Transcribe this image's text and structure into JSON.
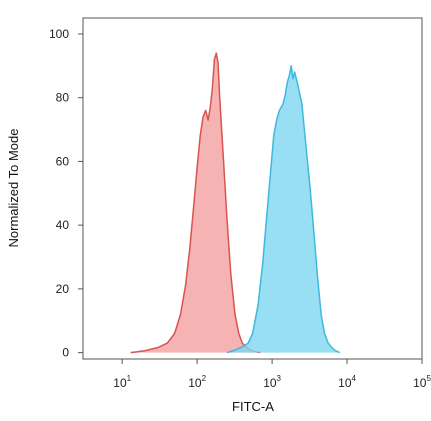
{
  "chart_data": {
    "type": "area",
    "xlabel": "FITC-A",
    "ylabel": "Normalized To Mode",
    "x_scale": "log",
    "xlim": [
      3,
      100000
    ],
    "ylim": [
      -2,
      105
    ],
    "x_ticks": [
      {
        "value": 10,
        "base": "10",
        "exp": "1"
      },
      {
        "value": 100,
        "base": "10",
        "exp": "2"
      },
      {
        "value": 1000,
        "base": "10",
        "exp": "3"
      },
      {
        "value": 10000,
        "base": "10",
        "exp": "4"
      },
      {
        "value": 100000,
        "base": "10",
        "exp": "5"
      }
    ],
    "y_ticks": [
      {
        "value": 0,
        "label": "0"
      },
      {
        "value": 20,
        "label": "20"
      },
      {
        "value": 40,
        "label": "40"
      },
      {
        "value": 60,
        "label": "60"
      },
      {
        "value": 80,
        "label": "80"
      },
      {
        "value": 100,
        "label": "100"
      }
    ],
    "grid": false,
    "series": [
      {
        "fill": "#f4a0a0",
        "stroke": "#d9534f",
        "points": [
          [
            13,
            0
          ],
          [
            20,
            0.6
          ],
          [
            30,
            1.6
          ],
          [
            40,
            3
          ],
          [
            50,
            6
          ],
          [
            60,
            12
          ],
          [
            70,
            21
          ],
          [
            80,
            33
          ],
          [
            90,
            46
          ],
          [
            100,
            58
          ],
          [
            110,
            68
          ],
          [
            120,
            74
          ],
          [
            130,
            76
          ],
          [
            140,
            73
          ],
          [
            150,
            77
          ],
          [
            160,
            83
          ],
          [
            170,
            92
          ],
          [
            180,
            94
          ],
          [
            190,
            91
          ],
          [
            200,
            80
          ],
          [
            220,
            64
          ],
          [
            250,
            42
          ],
          [
            280,
            25
          ],
          [
            320,
            12
          ],
          [
            360,
            6
          ],
          [
            400,
            3
          ],
          [
            450,
            1.8
          ],
          [
            500,
            1
          ],
          [
            600,
            0.3
          ],
          [
            700,
            0
          ]
        ]
      },
      {
        "fill": "#7fd7f1",
        "stroke": "#3fb8dd",
        "points": [
          [
            250,
            0
          ],
          [
            320,
            0.8
          ],
          [
            400,
            1.8
          ],
          [
            480,
            3
          ],
          [
            550,
            6
          ],
          [
            650,
            15
          ],
          [
            750,
            28
          ],
          [
            850,
            43
          ],
          [
            950,
            56
          ],
          [
            1050,
            68
          ],
          [
            1150,
            73
          ],
          [
            1250,
            76
          ],
          [
            1400,
            78
          ],
          [
            1500,
            81
          ],
          [
            1600,
            85
          ],
          [
            1700,
            87
          ],
          [
            1800,
            90
          ],
          [
            1900,
            86
          ],
          [
            2000,
            88
          ],
          [
            2200,
            84
          ],
          [
            2500,
            78
          ],
          [
            2800,
            66
          ],
          [
            3200,
            52
          ],
          [
            3600,
            38
          ],
          [
            4000,
            25
          ],
          [
            4500,
            12
          ],
          [
            5000,
            6
          ],
          [
            5600,
            3
          ],
          [
            6300,
            1.5
          ],
          [
            7000,
            0.6
          ],
          [
            8000,
            0
          ]
        ]
      }
    ]
  }
}
